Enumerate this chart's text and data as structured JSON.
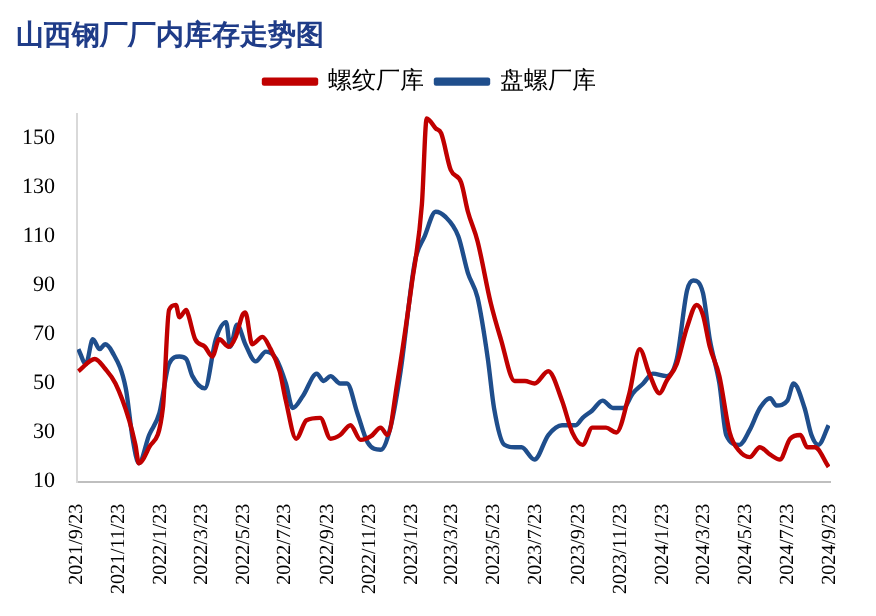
{
  "chart_data": {
    "type": "line",
    "title": "山西钢厂厂内库存走势图",
    "legend": "top",
    "grid": false,
    "xlim": [
      "2021-09-23",
      "2024-09-23"
    ],
    "xticks": [
      {
        "value": "2021-09-23",
        "label": "2021/9/23"
      },
      {
        "value": "2021-11-23",
        "label": "2021/11/23"
      },
      {
        "value": "2022-01-23",
        "label": "2022/1/23"
      },
      {
        "value": "2022-03-23",
        "label": "2022/3/23"
      },
      {
        "value": "2022-05-23",
        "label": "2022/5/23"
      },
      {
        "value": "2022-07-23",
        "label": "2022/7/23"
      },
      {
        "value": "2022-09-23",
        "label": "2022/9/23"
      },
      {
        "value": "2022-11-23",
        "label": "2022/11/23"
      },
      {
        "value": "2023-01-23",
        "label": "2023/1/23"
      },
      {
        "value": "2023-03-23",
        "label": "2023/3/23"
      },
      {
        "value": "2023-05-23",
        "label": "2023/5/23"
      },
      {
        "value": "2023-07-23",
        "label": "2023/7/23"
      },
      {
        "value": "2023-09-23",
        "label": "2023/9/23"
      },
      {
        "value": "2023-11-23",
        "label": "2023/11/23"
      },
      {
        "value": "2024-01-23",
        "label": "2024/1/23"
      },
      {
        "value": "2024-03-23",
        "label": "2024/3/23"
      },
      {
        "value": "2024-05-23",
        "label": "2024/5/23"
      },
      {
        "value": "2024-07-23",
        "label": "2024/7/23"
      },
      {
        "value": "2024-09-23",
        "label": "2024/9/23"
      }
    ],
    "ylim": [
      10,
      160
    ],
    "yticks": [
      10,
      30,
      50,
      70,
      90,
      110,
      130,
      150
    ],
    "series": [
      {
        "name": "螺纹厂库",
        "color": "#c00000",
        "x": [
          "2021-09-25",
          "2021-10-19",
          "2021-11-03",
          "2021-11-18",
          "2021-12-08",
          "2021-12-17",
          "2021-12-22",
          "2022-01-06",
          "2022-01-26",
          "2022-02-04",
          "2022-02-14",
          "2022-02-19",
          "2022-03-01",
          "2022-03-04",
          "2022-03-14",
          "2022-03-28",
          "2022-04-08",
          "2022-04-18",
          "2022-05-02",
          "2022-05-12",
          "2022-05-22",
          "2022-05-26",
          "2022-06-05",
          "2022-06-20",
          "2022-06-30",
          "2022-07-15",
          "2022-07-24",
          "2022-08-08",
          "2022-08-23",
          "2022-09-12",
          "2022-09-27",
          "2022-10-11",
          "2022-10-26",
          "2022-11-10",
          "2022-11-25",
          "2022-12-09",
          "2022-12-19",
          "2023-01-02",
          "2023-01-23",
          "2023-02-07",
          "2023-02-14",
          "2023-02-27",
          "2023-03-07",
          "2023-03-21",
          "2023-04-05",
          "2023-04-15",
          "2023-04-29",
          "2023-05-18",
          "2023-06-02",
          "2023-06-22",
          "2023-07-07",
          "2023-07-21",
          "2023-08-10",
          "2023-08-30",
          "2023-09-14",
          "2023-09-29",
          "2023-10-13",
          "2023-11-02",
          "2023-11-17",
          "2023-12-06",
          "2023-12-21",
          "2024-01-04",
          "2024-01-19",
          "2024-01-29",
          "2024-02-13",
          "2024-02-28",
          "2024-03-13",
          "2024-03-22",
          "2024-04-01",
          "2024-04-15",
          "2024-04-30",
          "2024-05-14",
          "2024-05-29",
          "2024-06-13",
          "2024-06-28",
          "2024-07-12",
          "2024-07-27",
          "2024-08-11",
          "2024-08-21",
          "2024-09-01",
          "2024-09-21"
        ],
        "values": [
          55,
          60,
          56,
          50,
          35,
          25,
          17.5,
          24,
          40,
          80,
          82,
          77,
          80,
          78,
          68,
          65,
          61,
          68,
          65,
          69,
          78,
          79,
          66,
          69,
          65,
          55,
          43,
          27.5,
          35,
          36,
          27.5,
          29,
          33,
          27,
          28.5,
          32,
          29,
          50,
          90,
          123,
          158,
          154,
          152,
          137,
          132,
          120,
          108,
          83,
          68,
          51,
          51,
          50,
          55,
          43,
          30,
          25,
          32,
          32,
          30,
          46,
          64,
          54,
          46,
          51,
          58,
          73,
          82,
          78,
          65,
          53,
          30,
          22.5,
          20,
          24,
          21,
          19,
          27.5,
          29,
          24,
          24,
          16
        ]
      },
      {
        "name": "盘螺厂库",
        "color": "#1f4e8c",
        "x": [
          "2021-09-25",
          "2021-10-06",
          "2021-10-16",
          "2021-10-26",
          "2021-11-03",
          "2021-11-13",
          "2021-12-03",
          "2021-12-13",
          "2021-12-22",
          "2022-01-06",
          "2022-01-21",
          "2022-02-04",
          "2022-02-19",
          "2022-03-01",
          "2022-03-10",
          "2022-03-28",
          "2022-04-13",
          "2022-04-28",
          "2022-05-04",
          "2022-05-14",
          "2022-05-26",
          "2022-06-10",
          "2022-06-25",
          "2022-07-10",
          "2022-07-24",
          "2022-08-03",
          "2022-08-18",
          "2022-09-07",
          "2022-09-17",
          "2022-09-27",
          "2022-10-11",
          "2022-10-21",
          "2022-11-05",
          "2022-11-20",
          "2022-12-09",
          "2022-12-24",
          "2023-01-07",
          "2023-01-28",
          "2023-02-11",
          "2023-02-27",
          "2023-03-13",
          "2023-04-01",
          "2023-04-15",
          "2023-04-29",
          "2023-05-14",
          "2023-05-23",
          "2023-06-07",
          "2023-06-22",
          "2023-07-02",
          "2023-07-21",
          "2023-08-10",
          "2023-08-30",
          "2023-09-19",
          "2023-09-29",
          "2023-10-13",
          "2023-10-28",
          "2023-11-12",
          "2023-11-27",
          "2023-12-11",
          "2023-12-26",
          "2024-01-09",
          "2024-01-29",
          "2024-02-13",
          "2024-02-28",
          "2024-03-08",
          "2024-03-22",
          "2024-04-01",
          "2024-04-15",
          "2024-04-25",
          "2024-05-14",
          "2024-05-29",
          "2024-06-13",
          "2024-06-28",
          "2024-07-07",
          "2024-07-23",
          "2024-08-01",
          "2024-08-17",
          "2024-08-27",
          "2024-09-06",
          "2024-09-21"
        ],
        "values": [
          64,
          58,
          68,
          64,
          66,
          63,
          48,
          27.5,
          17.5,
          29,
          38,
          58,
          61,
          60,
          53,
          48,
          68,
          75,
          65,
          74,
          66,
          59,
          63,
          60,
          50,
          40,
          45,
          54,
          51,
          53,
          50,
          50,
          38,
          26,
          23,
          33,
          55,
          100,
          110,
          120,
          118,
          110,
          95,
          85,
          60,
          40,
          25,
          24,
          24,
          19,
          29,
          33,
          33,
          36,
          39,
          43,
          40,
          40,
          46,
          50,
          54,
          53,
          60,
          88,
          92,
          87,
          68,
          50,
          29,
          25,
          31,
          40,
          44,
          41,
          43,
          50,
          40,
          29,
          25,
          33
        ]
      }
    ]
  }
}
